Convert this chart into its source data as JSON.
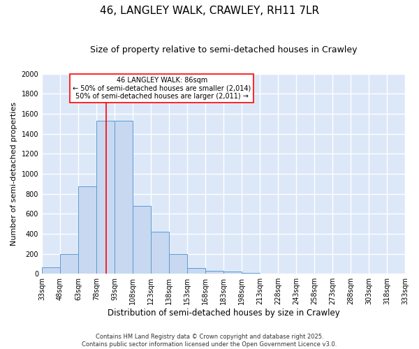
{
  "title": "46, LANGLEY WALK, CRAWLEY, RH11 7LR",
  "subtitle": "Size of property relative to semi-detached houses in Crawley",
  "xlabel": "Distribution of semi-detached houses by size in Crawley",
  "ylabel": "Number of semi-detached properties",
  "bins": [
    33,
    48,
    63,
    78,
    93,
    108,
    123,
    138,
    153,
    168,
    183,
    198,
    213,
    228,
    243,
    258,
    273,
    288,
    303,
    318,
    333
  ],
  "bin_labels": [
    "33sqm",
    "48sqm",
    "63sqm",
    "78sqm",
    "93sqm",
    "108sqm",
    "123sqm",
    "138sqm",
    "153sqm",
    "168sqm",
    "183sqm",
    "198sqm",
    "213sqm",
    "228sqm",
    "243sqm",
    "258sqm",
    "273sqm",
    "288sqm",
    "303sqm",
    "318sqm",
    "333sqm"
  ],
  "bar_values": [
    65,
    195,
    875,
    1530,
    1530,
    680,
    420,
    195,
    60,
    30,
    25,
    10,
    0,
    0,
    0,
    0,
    0,
    0,
    0,
    0
  ],
  "bar_color": "#c8d8f0",
  "bar_edge_color": "#5b9bd5",
  "red_line_x": 86,
  "ylim": [
    0,
    2000
  ],
  "yticks": [
    0,
    200,
    400,
    600,
    800,
    1000,
    1200,
    1400,
    1600,
    1800,
    2000
  ],
  "background_color": "#dce8f8",
  "grid_color": "#f0f4ff",
  "legend_title": "46 LANGLEY WALK: 86sqm",
  "legend_line1": "← 50% of semi-detached houses are smaller (2,014)",
  "legend_line2": "50% of semi-detached houses are larger (2,011) →",
  "footnote1": "Contains HM Land Registry data © Crown copyright and database right 2025.",
  "footnote2": "Contains public sector information licensed under the Open Government Licence v3.0.",
  "title_fontsize": 11,
  "subtitle_fontsize": 9,
  "tick_fontsize": 7,
  "ylabel_fontsize": 8,
  "xlabel_fontsize": 8.5,
  "legend_fontsize": 7,
  "footnote_fontsize": 6
}
